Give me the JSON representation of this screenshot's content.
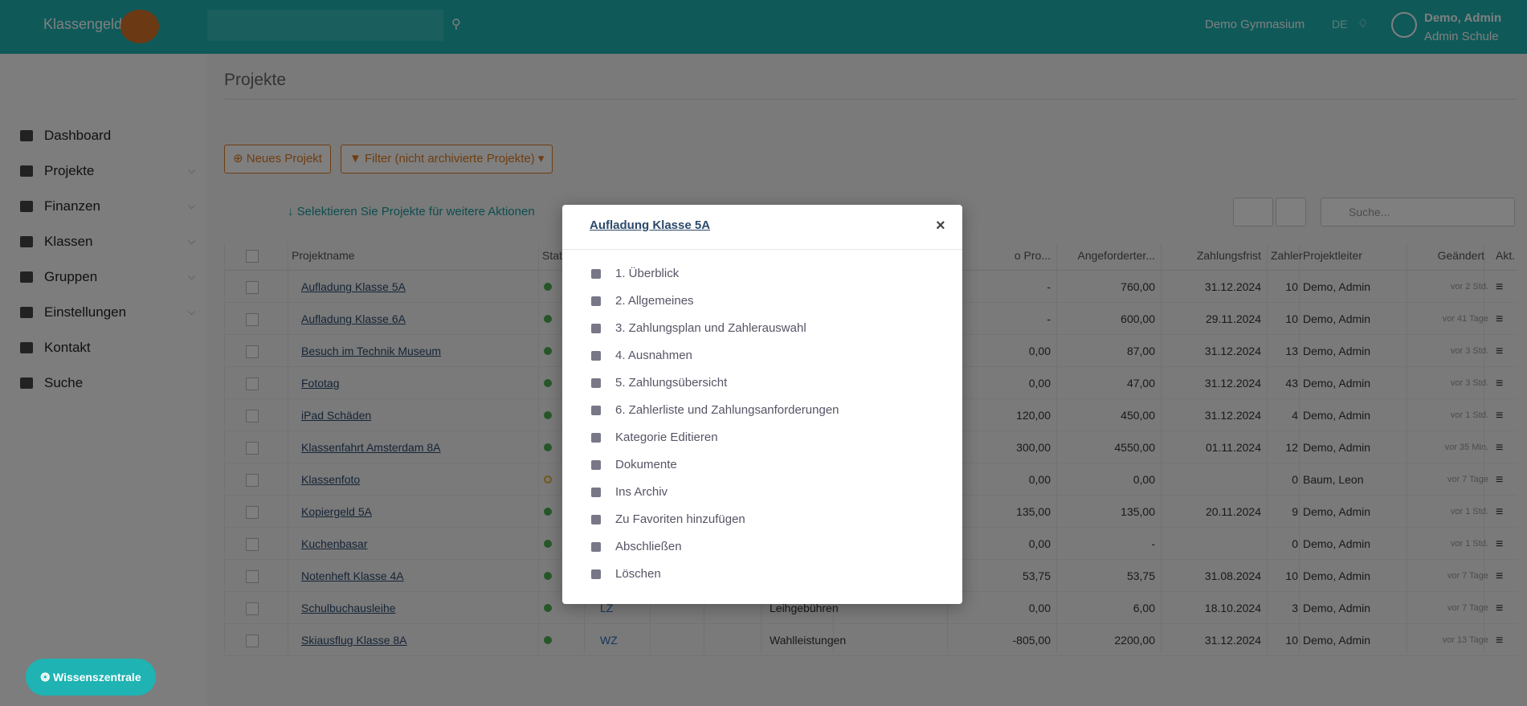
{
  "header": {
    "brand": "Klassengeld",
    "school": "Demo Gymnasium",
    "lang": "DE",
    "user_name": "Demo, Admin",
    "user_role": "Admin Schule"
  },
  "sidebar": [
    "Dashboard",
    "Projekte",
    "Finanzen",
    "Klassen",
    "Gruppen",
    "Einstellungen",
    "Kontakt",
    "Suche"
  ],
  "page_title": "Projekte",
  "buttons": {
    "new": "Neues Projekt",
    "filter": "Filter (nicht archivierte Projekte)"
  },
  "hint": "Selektieren Sie Projekte für weitere Aktionen",
  "search_placeholder": "Suche...",
  "table": {
    "columns": [
      "Projektname",
      "Stat",
      "o Pro...",
      "Angeforderter...",
      "Zahlungsfrist",
      "Zahler",
      "Projektleiter",
      "Geändert",
      "Akt."
    ],
    "rows": [
      {
        "name": "Aufladung Klasse 5A",
        "amount": "-",
        "requested": "760,00",
        "deadline": "31.12.2024",
        "payers": 10,
        "leader": "Demo, Admin",
        "changed": "vor 2 Std."
      },
      {
        "name": "Aufladung Klasse 6A",
        "amount": "-",
        "requested": "600,00",
        "deadline": "29.11.2024",
        "payers": 10,
        "leader": "Demo, Admin",
        "changed": "vor 41 Tage"
      },
      {
        "name": "Besuch im Technik Museum",
        "amount": "0,00",
        "requested": "87,00",
        "deadline": "31.12.2024",
        "payers": 13,
        "leader": "Demo, Admin",
        "changed": "vor 3 Std."
      },
      {
        "name": "Fototag",
        "amount": "0,00",
        "requested": "47,00",
        "deadline": "31.12.2024",
        "payers": 43,
        "leader": "Demo, Admin",
        "changed": "vor 3 Std."
      },
      {
        "name": "iPad Schäden",
        "amount": "120,00",
        "requested": "450,00",
        "deadline": "31.12.2024",
        "payers": 4,
        "leader": "Demo, Admin",
        "changed": "vor 1 Std."
      },
      {
        "name": "Klassenfahrt Amsterdam 8A",
        "amount": "300,00",
        "requested": "4550,00",
        "deadline": "01.11.2024",
        "payers": 12,
        "leader": "Demo, Admin",
        "changed": "vor 35 Min."
      },
      {
        "name": "Klassenfoto",
        "amount": "0,00",
        "requested": "0,00",
        "payers": 0,
        "leader": "Baum, Leon",
        "changed": "vor 7 Tage"
      },
      {
        "name": "Kopiergeld 5A",
        "amount": "135,00",
        "requested": "135,00",
        "deadline": "20.11.2024",
        "payers": 9,
        "leader": "Demo, Admin",
        "changed": "vor 1 Std."
      },
      {
        "name": "Kuchenbasar",
        "amount": "0,00",
        "requested": "-",
        "payers": 0,
        "leader": "Demo, Admin",
        "changed": "vor 1 Std."
      },
      {
        "name": "Notenheft Klasse 4A",
        "amount": "53,75",
        "requested": "53,75",
        "deadline": "31.08.2024",
        "payers": 10,
        "leader": "Demo, Admin",
        "changed": "vor 7 Tage"
      },
      {
        "name": "Schulbuchausleihe",
        "code": "LZ",
        "category": "Leihgebühren",
        "amount": "0,00",
        "requested": "6,00",
        "deadline": "18.10.2024",
        "payers": 3,
        "leader": "Demo, Admin",
        "changed": "vor 7 Tage"
      },
      {
        "name": "Skiausflug Klasse 8A",
        "code": "WZ",
        "category": "Wahlleistungen",
        "amount": "-805,00",
        "requested": "2200,00",
        "deadline": "31.12.2024",
        "payers": 10,
        "leader": "Demo, Admin",
        "changed": "vor 13 Tage"
      }
    ]
  },
  "modal": {
    "title": "Aufladung Klasse 5A",
    "items": [
      "1. Überblick",
      "2. Allgemeines",
      "3. Zahlungsplan und Zahlerauswahl",
      "4. Ausnahmen",
      "5. Zahlungsübersicht",
      "6. Zahlerliste und Zahlungsanforderungen",
      "Kategorie Editieren",
      "Dokumente",
      "Ins Archiv",
      "Zu Favoriten hinzufügen",
      "Abschließen",
      "Löschen"
    ]
  },
  "help_button": "Wissenszentrale"
}
